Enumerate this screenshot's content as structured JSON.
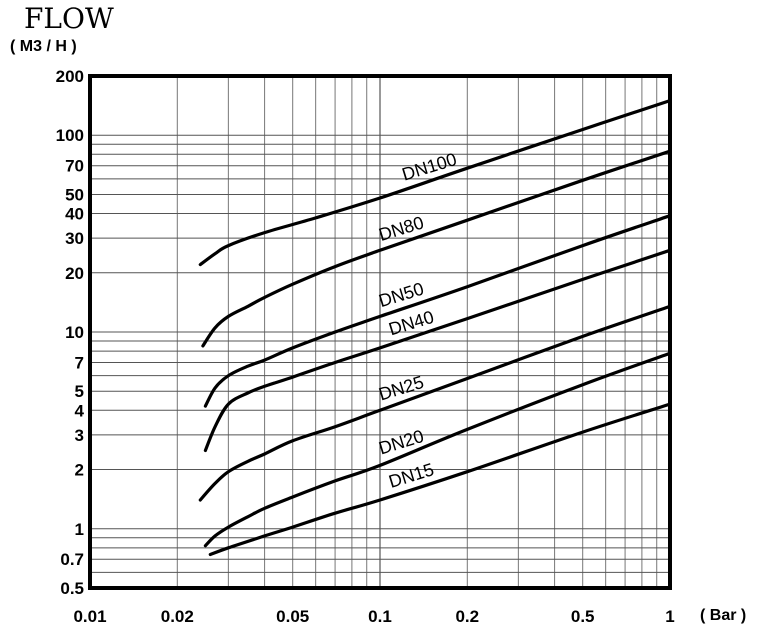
{
  "chart_data": {
    "type": "line",
    "title": "FLOW",
    "ylabel": "( M3 / H )",
    "xlabel": "( Bar )",
    "x_scale": "log",
    "y_scale": "log",
    "xlim": [
      0.01,
      1
    ],
    "ylim": [
      0.5,
      200
    ],
    "grid": true,
    "x_ticks": [
      {
        "value": 0.01,
        "label": "0.01"
      },
      {
        "value": 0.02,
        "label": "0.02"
      },
      {
        "value": 0.05,
        "label": "0.05"
      },
      {
        "value": 0.1,
        "label": "0.1"
      },
      {
        "value": 0.2,
        "label": "0.2"
      },
      {
        "value": 0.5,
        "label": "0.5"
      },
      {
        "value": 1,
        "label": "1"
      }
    ],
    "y_ticks": [
      {
        "value": 0.5,
        "label": "0.5"
      },
      {
        "value": 0.7,
        "label": "0.7"
      },
      {
        "value": 1,
        "label": "1"
      },
      {
        "value": 2,
        "label": "2"
      },
      {
        "value": 3,
        "label": "3"
      },
      {
        "value": 4,
        "label": "4"
      },
      {
        "value": 5,
        "label": "5"
      },
      {
        "value": 7,
        "label": "7"
      },
      {
        "value": 10,
        "label": "10"
      },
      {
        "value": 20,
        "label": "20"
      },
      {
        "value": 30,
        "label": "30"
      },
      {
        "value": 40,
        "label": "40"
      },
      {
        "value": 50,
        "label": "50"
      },
      {
        "value": 70,
        "label": "70"
      },
      {
        "value": 100,
        "label": "100"
      },
      {
        "value": 200,
        "label": "200"
      }
    ],
    "series": [
      {
        "name": "DN100",
        "points": [
          [
            0.024,
            22
          ],
          [
            0.027,
            25
          ],
          [
            0.03,
            27.5
          ],
          [
            0.04,
            32
          ],
          [
            0.06,
            38
          ],
          [
            0.1,
            48
          ],
          [
            0.2,
            68
          ],
          [
            0.5,
            107
          ],
          [
            1,
            150
          ]
        ]
      },
      {
        "name": "DN80",
        "points": [
          [
            0.0245,
            8.5
          ],
          [
            0.027,
            10.5
          ],
          [
            0.03,
            12
          ],
          [
            0.035,
            13.5
          ],
          [
            0.04,
            15
          ],
          [
            0.05,
            17.5
          ],
          [
            0.07,
            21.5
          ],
          [
            0.1,
            26
          ],
          [
            0.2,
            37
          ],
          [
            0.5,
            59
          ],
          [
            1,
            83
          ]
        ]
      },
      {
        "name": "DN50",
        "points": [
          [
            0.025,
            4.2
          ],
          [
            0.027,
            5.2
          ],
          [
            0.03,
            6
          ],
          [
            0.035,
            6.7
          ],
          [
            0.04,
            7.2
          ],
          [
            0.05,
            8.3
          ],
          [
            0.07,
            10
          ],
          [
            0.1,
            12
          ],
          [
            0.2,
            17
          ],
          [
            0.5,
            27.5
          ],
          [
            1,
            39
          ]
        ]
      },
      {
        "name": "DN40",
        "points": [
          [
            0.025,
            2.5
          ],
          [
            0.027,
            3.3
          ],
          [
            0.03,
            4.3
          ],
          [
            0.035,
            4.9
          ],
          [
            0.04,
            5.3
          ],
          [
            0.05,
            5.9
          ],
          [
            0.07,
            7
          ],
          [
            0.1,
            8.3
          ],
          [
            0.2,
            11.7
          ],
          [
            0.5,
            18.5
          ],
          [
            1,
            26
          ]
        ]
      },
      {
        "name": "DN25",
        "points": [
          [
            0.024,
            1.4
          ],
          [
            0.027,
            1.7
          ],
          [
            0.03,
            1.95
          ],
          [
            0.035,
            2.2
          ],
          [
            0.04,
            2.4
          ],
          [
            0.05,
            2.8
          ],
          [
            0.07,
            3.3
          ],
          [
            0.1,
            4
          ],
          [
            0.2,
            5.8
          ],
          [
            0.5,
            9.5
          ],
          [
            1,
            13.5
          ]
        ]
      },
      {
        "name": "DN20",
        "points": [
          [
            0.025,
            0.82
          ],
          [
            0.027,
            0.92
          ],
          [
            0.03,
            1.02
          ],
          [
            0.035,
            1.15
          ],
          [
            0.04,
            1.27
          ],
          [
            0.05,
            1.45
          ],
          [
            0.07,
            1.75
          ],
          [
            0.1,
            2.1
          ],
          [
            0.2,
            3.2
          ],
          [
            0.5,
            5.4
          ],
          [
            1,
            7.8
          ]
        ]
      },
      {
        "name": "DN15",
        "points": [
          [
            0.026,
            0.74
          ],
          [
            0.03,
            0.8
          ],
          [
            0.04,
            0.92
          ],
          [
            0.05,
            1.02
          ],
          [
            0.07,
            1.2
          ],
          [
            0.1,
            1.4
          ],
          [
            0.2,
            1.95
          ],
          [
            0.5,
            3.1
          ],
          [
            1,
            4.3
          ]
        ]
      }
    ]
  }
}
